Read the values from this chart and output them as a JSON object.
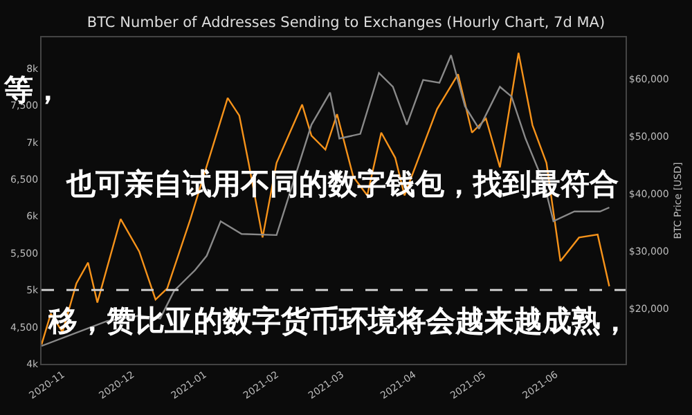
{
  "chart_data": {
    "type": "line",
    "title": "BTC Number of Addresses Sending to Exchanges (Hourly Chart, 7d MA)",
    "y2label": "BTC Price [USD]",
    "annotations": [
      "等，",
      "也可亲自试用不同的数字钱包，找到最符合",
      "移，赞比亚的数字货币环境将会越来越成熟，"
    ],
    "xlim": [
      "2020-10-23",
      "2021-07-01"
    ],
    "xticks": [
      "2020-11",
      "2020-12",
      "2021-01",
      "2021-02",
      "2021-03",
      "2021-04",
      "2021-05",
      "2021-06"
    ],
    "ylim": [
      4000,
      8420
    ],
    "yticks": [
      {
        "value": 4000,
        "label": "4k"
      },
      {
        "value": 4500,
        "label": "4,500"
      },
      {
        "value": 5000,
        "label": "5k"
      },
      {
        "value": 5500,
        "label": "5,500"
      },
      {
        "value": 6000,
        "label": "6k"
      },
      {
        "value": 6500,
        "label": "6,500"
      },
      {
        "value": 7000,
        "label": "7k"
      },
      {
        "value": 7500,
        "label": "7,500"
      },
      {
        "value": 8000,
        "label": "8k"
      }
    ],
    "y2lim": [
      10400,
      67200
    ],
    "y2ticks": [
      {
        "value": 20000,
        "label": "$20,000"
      },
      {
        "value": 30000,
        "label": "$30,000"
      },
      {
        "value": 40000,
        "label": "$40,000"
      },
      {
        "value": 50000,
        "label": "$50,000"
      },
      {
        "value": 60000,
        "label": "$60,000"
      }
    ],
    "grid": false,
    "marker": "none",
    "line_style": "solid",
    "ref_lines": [
      {
        "axis": "y",
        "value": 5000,
        "color": "#cccccc",
        "line_style": "dashed"
      }
    ],
    "series": [
      {
        "color": "#f7931a",
        "x": [
          "2020-10-23",
          "2020-10-27",
          "2020-11-01",
          "2020-11-07",
          "2020-11-12",
          "2020-11-16",
          "2020-11-26",
          "2020-12-04",
          "2020-12-11",
          "2020-12-16",
          "2020-12-26",
          "2021-01-11",
          "2021-01-16",
          "2021-01-20",
          "2021-01-26",
          "2021-02-01",
          "2021-02-12",
          "2021-02-16",
          "2021-02-22",
          "2021-02-27",
          "2021-03-06",
          "2021-03-12",
          "2021-03-18",
          "2021-03-24",
          "2021-03-28",
          "2021-04-11",
          "2021-04-20",
          "2021-04-26",
          "2021-05-02",
          "2021-05-08",
          "2021-05-16",
          "2021-05-22",
          "2021-05-28",
          "2021-06-03",
          "2021-06-11",
          "2021-06-19",
          "2021-06-24"
        ],
        "values": [
          4260,
          4680,
          4430,
          5090,
          5370,
          4830,
          5960,
          5520,
          4870,
          5020,
          5960,
          7600,
          7360,
          6720,
          5710,
          6720,
          7510,
          7090,
          6900,
          7380,
          6530,
          6280,
          7130,
          6790,
          6280,
          7450,
          7920,
          7130,
          7320,
          6660,
          8210,
          7230,
          6720,
          5390,
          5710,
          5750,
          5050
        ]
      },
      {
        "color": "#8a8a8a",
        "axis": "y2",
        "x": [
          "2020-10-23",
          "2020-11-20",
          "2020-12-04",
          "2020-12-13",
          "2020-12-19",
          "2020-12-28",
          "2021-01-02",
          "2021-01-08",
          "2021-01-17",
          "2021-02-01",
          "2021-02-16",
          "2021-02-24",
          "2021-02-28",
          "2021-03-09",
          "2021-03-17",
          "2021-03-23",
          "2021-03-29",
          "2021-04-05",
          "2021-04-12",
          "2021-04-17",
          "2021-04-23",
          "2021-04-29",
          "2021-05-08",
          "2021-05-13",
          "2021-05-19",
          "2021-05-27",
          "2021-05-31",
          "2021-06-09",
          "2021-06-20",
          "2021-06-24"
        ],
        "values": [
          13500,
          17800,
          18800,
          18300,
          23100,
          26700,
          29200,
          35200,
          33000,
          32800,
          52000,
          57600,
          49600,
          50400,
          61000,
          58600,
          52000,
          59800,
          59300,
          64100,
          55200,
          51300,
          58600,
          56900,
          49600,
          41700,
          35200,
          36900,
          36900,
          37600
        ]
      }
    ]
  }
}
